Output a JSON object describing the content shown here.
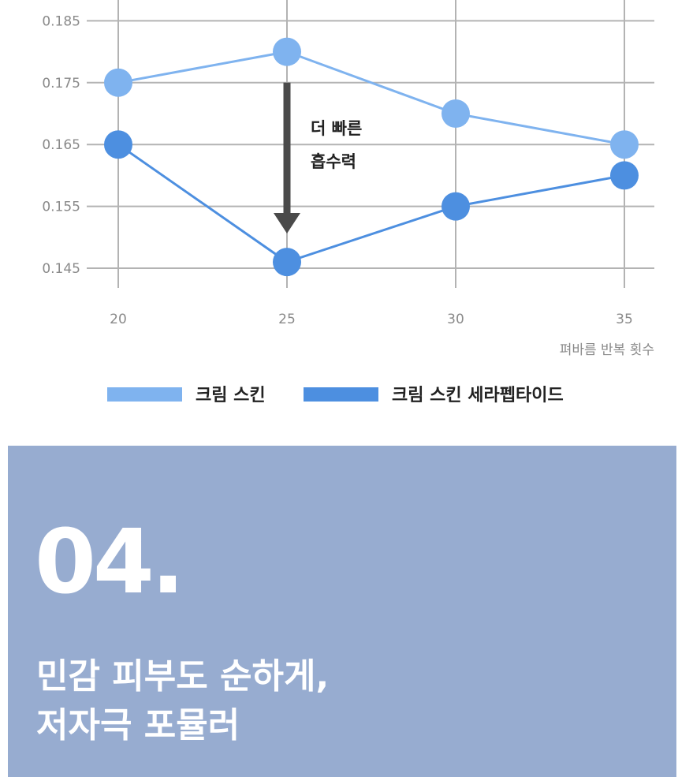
{
  "chart_data": {
    "type": "line",
    "x": [
      20,
      25,
      30,
      35
    ],
    "xlabel": "펴바름 반복 횟수",
    "ylabel": "",
    "ylim": [
      0.14,
      0.19
    ],
    "yticks": [
      0.145,
      0.155,
      0.165,
      0.175,
      0.185
    ],
    "grid": true,
    "legend_placement": "bottom",
    "series": [
      {
        "name": "크림 스킨",
        "color": "#7fb3ef",
        "values": [
          0.175,
          0.18,
          0.17,
          0.165
        ]
      },
      {
        "name": "크림 스킨 세라펩타이드",
        "color": "#4d8fe0",
        "values": [
          0.165,
          0.146,
          0.155,
          0.16
        ]
      }
    ],
    "annotation": {
      "lines": [
        "더 빠른",
        "흡수력"
      ],
      "x": 25,
      "from": 0.175,
      "to": 0.151,
      "arrow_color": "#4a4a4a"
    }
  },
  "section": {
    "number": "04.",
    "title_lines": [
      "민감 피부도 순하게,",
      "저자극 포뮬러"
    ],
    "background": "#97acd0"
  }
}
